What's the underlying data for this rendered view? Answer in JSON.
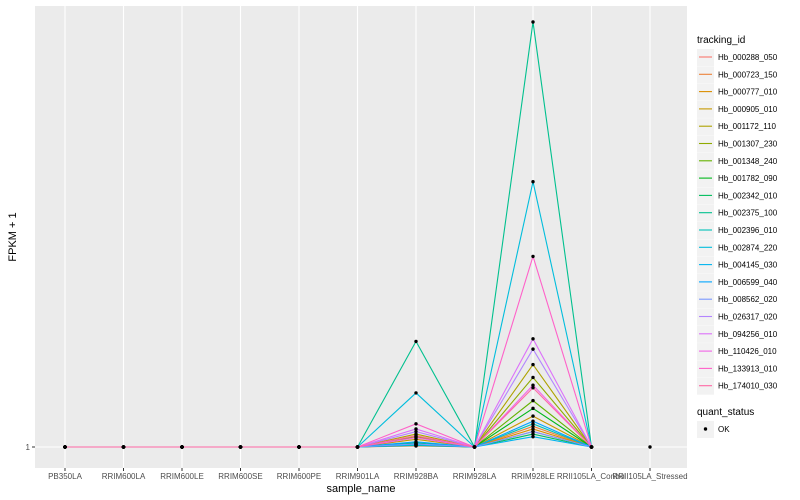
{
  "chart_data": {
    "type": "line",
    "xlabel": "sample_name",
    "ylabel": "FPKM + 1",
    "y_tick_labels": [
      "1"
    ],
    "ylim": [
      0.95,
      9.5
    ],
    "grid": true,
    "legend_placement": "right",
    "categories": [
      "PB350LA",
      "RRIM600LA",
      "RRIM600LE",
      "RRIM600SE",
      "RRIM600PE",
      "RRIM901LA",
      "RRIM928BA",
      "RRIM928LA",
      "RRIM928LE",
      "RRII105LA_Control",
      "RRII105LA_Stressed"
    ],
    "legend_title": "tracking_id",
    "series": [
      {
        "name": "Hb_000288_050",
        "color": "#F8766D",
        "values": [
          1,
          1,
          1,
          1,
          1,
          1,
          1.02,
          1,
          1.3,
          1,
          null
        ]
      },
      {
        "name": "Hb_000723_150",
        "color": "#EC8239",
        "values": [
          1,
          1,
          1,
          1,
          1,
          1,
          1.05,
          1,
          1.4,
          1,
          null
        ]
      },
      {
        "name": "Hb_000777_010",
        "color": "#DB8E00",
        "values": [
          1,
          1,
          1,
          1,
          1,
          1,
          1.06,
          1,
          1.35,
          1,
          null
        ]
      },
      {
        "name": "Hb_000905_010",
        "color": "#C79800",
        "values": [
          1,
          1,
          1,
          1,
          1,
          1,
          1.15,
          1,
          1.6,
          1,
          null
        ]
      },
      {
        "name": "Hb_001172_110",
        "color": "#AEA200",
        "values": [
          1,
          1,
          1,
          1,
          1,
          1,
          1.25,
          1,
          2.6,
          1,
          null
        ]
      },
      {
        "name": "Hb_001307_230",
        "color": "#8FAA00",
        "values": [
          1,
          1,
          1,
          1,
          1,
          1,
          1.2,
          1,
          2.35,
          1,
          null
        ]
      },
      {
        "name": "Hb_001348_240",
        "color": "#64B200",
        "values": [
          1,
          1,
          1,
          1,
          1,
          1,
          1.04,
          1,
          1.9,
          1,
          null
        ]
      },
      {
        "name": "Hb_001782_090",
        "color": "#00B81B",
        "values": [
          1,
          1,
          1,
          1,
          1,
          1,
          1.08,
          1,
          1.75,
          1,
          null
        ]
      },
      {
        "name": "Hb_002342_010",
        "color": "#00BD5C",
        "values": [
          1,
          1,
          1,
          1,
          1,
          1,
          1.03,
          1,
          1.25,
          1,
          null
        ]
      },
      {
        "name": "Hb_002375_100",
        "color": "#00C08E",
        "values": [
          1,
          1,
          1,
          1,
          1,
          1,
          3.05,
          1,
          9.25,
          1,
          null
        ]
      },
      {
        "name": "Hb_002396_010",
        "color": "#00C1B7",
        "values": [
          1,
          1,
          1,
          1,
          1,
          1,
          1.07,
          1,
          1.45,
          1,
          null
        ]
      },
      {
        "name": "Hb_002874_220",
        "color": "#00BDDC",
        "values": [
          1,
          1,
          1,
          1,
          1,
          1,
          2.05,
          1,
          6.15,
          1,
          null
        ]
      },
      {
        "name": "Hb_004145_030",
        "color": "#00B4EF",
        "values": [
          1,
          1,
          1,
          1,
          1,
          1,
          1.04,
          1,
          1.2,
          1,
          null
        ]
      },
      {
        "name": "Hb_006599_040",
        "color": "#00A5FF",
        "values": [
          1,
          1,
          1,
          1,
          1,
          1,
          1.1,
          1,
          1.5,
          1,
          null
        ]
      },
      {
        "name": "Hb_008562_020",
        "color": "#7997FF",
        "values": [
          1,
          1,
          1,
          1,
          1,
          1,
          1.06,
          1,
          1.3,
          1,
          null
        ]
      },
      {
        "name": "Hb_026317_020",
        "color": "#B385FF",
        "values": [
          1,
          1,
          1,
          1,
          1,
          1,
          1.3,
          1,
          2.9,
          1,
          null
        ]
      },
      {
        "name": "Hb_094256_010",
        "color": "#DC71FA",
        "values": [
          1,
          1,
          1,
          1,
          1,
          1,
          1.35,
          1,
          3.1,
          1,
          null
        ]
      },
      {
        "name": "Hb_110426_010",
        "color": "#F265E7",
        "values": [
          1,
          1,
          1,
          1,
          1,
          1,
          1.18,
          1,
          2.2,
          1,
          null
        ]
      },
      {
        "name": "Hb_133913_010",
        "color": "#FF61C9",
        "values": [
          1,
          1,
          1,
          1,
          1,
          1,
          1.45,
          1,
          4.7,
          1,
          null
        ]
      },
      {
        "name": "Hb_174010_030",
        "color": "#FF67A4",
        "values": [
          1,
          1,
          1,
          1,
          1,
          1,
          1.22,
          1,
          2.15,
          1,
          null
        ]
      }
    ],
    "extra_point": {
      "category": "RRII105LA_Stressed",
      "value": 1
    },
    "shape_legend_title": "quant_status",
    "shape_legend_entries": [
      "OK"
    ],
    "colors": {
      "panel": "#EBEBEB",
      "grid_major": "#FFFFFF",
      "point": "#000000"
    }
  }
}
